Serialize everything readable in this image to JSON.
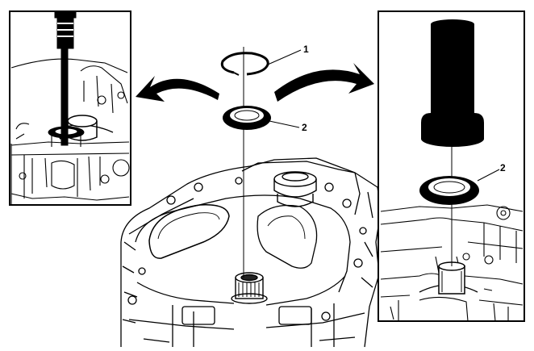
{
  "callouts": {
    "retaining_ring": "1",
    "seal": "2",
    "seal_inset": "2"
  },
  "colors": {
    "ink": "#000000",
    "paper": "#ffffff"
  },
  "parts": [
    "retaining-ring",
    "seal",
    "seal-installer-tool",
    "seal-remover-tool",
    "transmission-case"
  ]
}
